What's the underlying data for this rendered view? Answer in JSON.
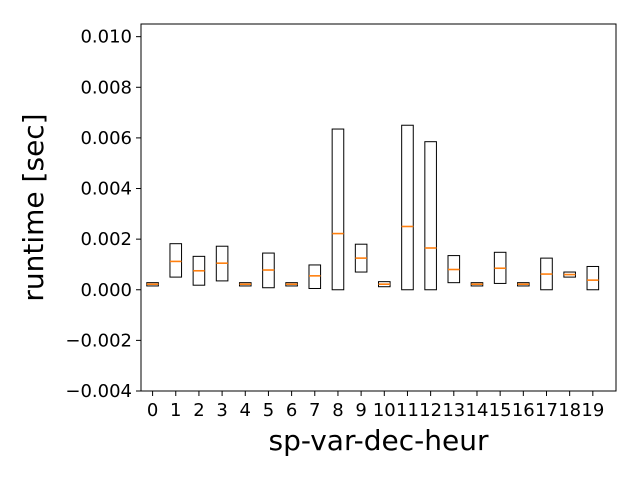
{
  "chart_data": {
    "type": "box",
    "xlabel": "sp-var-dec-heur",
    "ylabel": "runtime [sec]",
    "ylim": [
      -0.004,
      0.0105
    ],
    "yticks": [
      -0.004,
      -0.002,
      0.0,
      0.002,
      0.004,
      0.006,
      0.008,
      0.01
    ],
    "ytick_labels": [
      "−0.004",
      "−0.002",
      "0.000",
      "0.002",
      "0.004",
      "0.006",
      "0.008",
      "0.010"
    ],
    "categories": [
      "0",
      "1",
      "2",
      "3",
      "4",
      "5",
      "6",
      "7",
      "8",
      "9",
      "10",
      "11",
      "12",
      "13",
      "14",
      "15",
      "16",
      "17",
      "18",
      "19"
    ],
    "highlight_category": "18",
    "highlight_color": "#ff0000",
    "box_edge_color": "#000000",
    "median_color": "#ff7f0e",
    "boxes": [
      {
        "q1": 0.00015,
        "median": 0.00022,
        "q3": 0.00028
      },
      {
        "q1": 0.0005,
        "median": 0.00112,
        "q3": 0.00182
      },
      {
        "q1": 0.00018,
        "median": 0.00075,
        "q3": 0.00132
      },
      {
        "q1": 0.00035,
        "median": 0.00105,
        "q3": 0.00172
      },
      {
        "q1": 0.00015,
        "median": 0.00022,
        "q3": 0.00028
      },
      {
        "q1": 8e-05,
        "median": 0.00078,
        "q3": 0.00145
      },
      {
        "q1": 0.00015,
        "median": 0.00022,
        "q3": 0.00028
      },
      {
        "q1": 5e-05,
        "median": 0.00055,
        "q3": 0.00098
      },
      {
        "q1": 0.0,
        "median": 0.00222,
        "q3": 0.00635
      },
      {
        "q1": 0.0007,
        "median": 0.00125,
        "q3": 0.0018
      },
      {
        "q1": 0.00012,
        "median": 0.00022,
        "q3": 0.00032
      },
      {
        "q1": 0.0,
        "median": 0.0025,
        "q3": 0.0065
      },
      {
        "q1": 0.0,
        "median": 0.00165,
        "q3": 0.00585
      },
      {
        "q1": 0.00028,
        "median": 0.0008,
        "q3": 0.00135
      },
      {
        "q1": 0.00015,
        "median": 0.00022,
        "q3": 0.00028
      },
      {
        "q1": 0.00025,
        "median": 0.00085,
        "q3": 0.00148
      },
      {
        "q1": 0.00015,
        "median": 0.00022,
        "q3": 0.00028
      },
      {
        "q1": 0.0,
        "median": 0.00062,
        "q3": 0.00125
      },
      {
        "q1": 0.0005,
        "median": 0.0006,
        "q3": 0.0007
      },
      {
        "q1": 0.0,
        "median": 0.00038,
        "q3": 0.00092
      }
    ]
  }
}
